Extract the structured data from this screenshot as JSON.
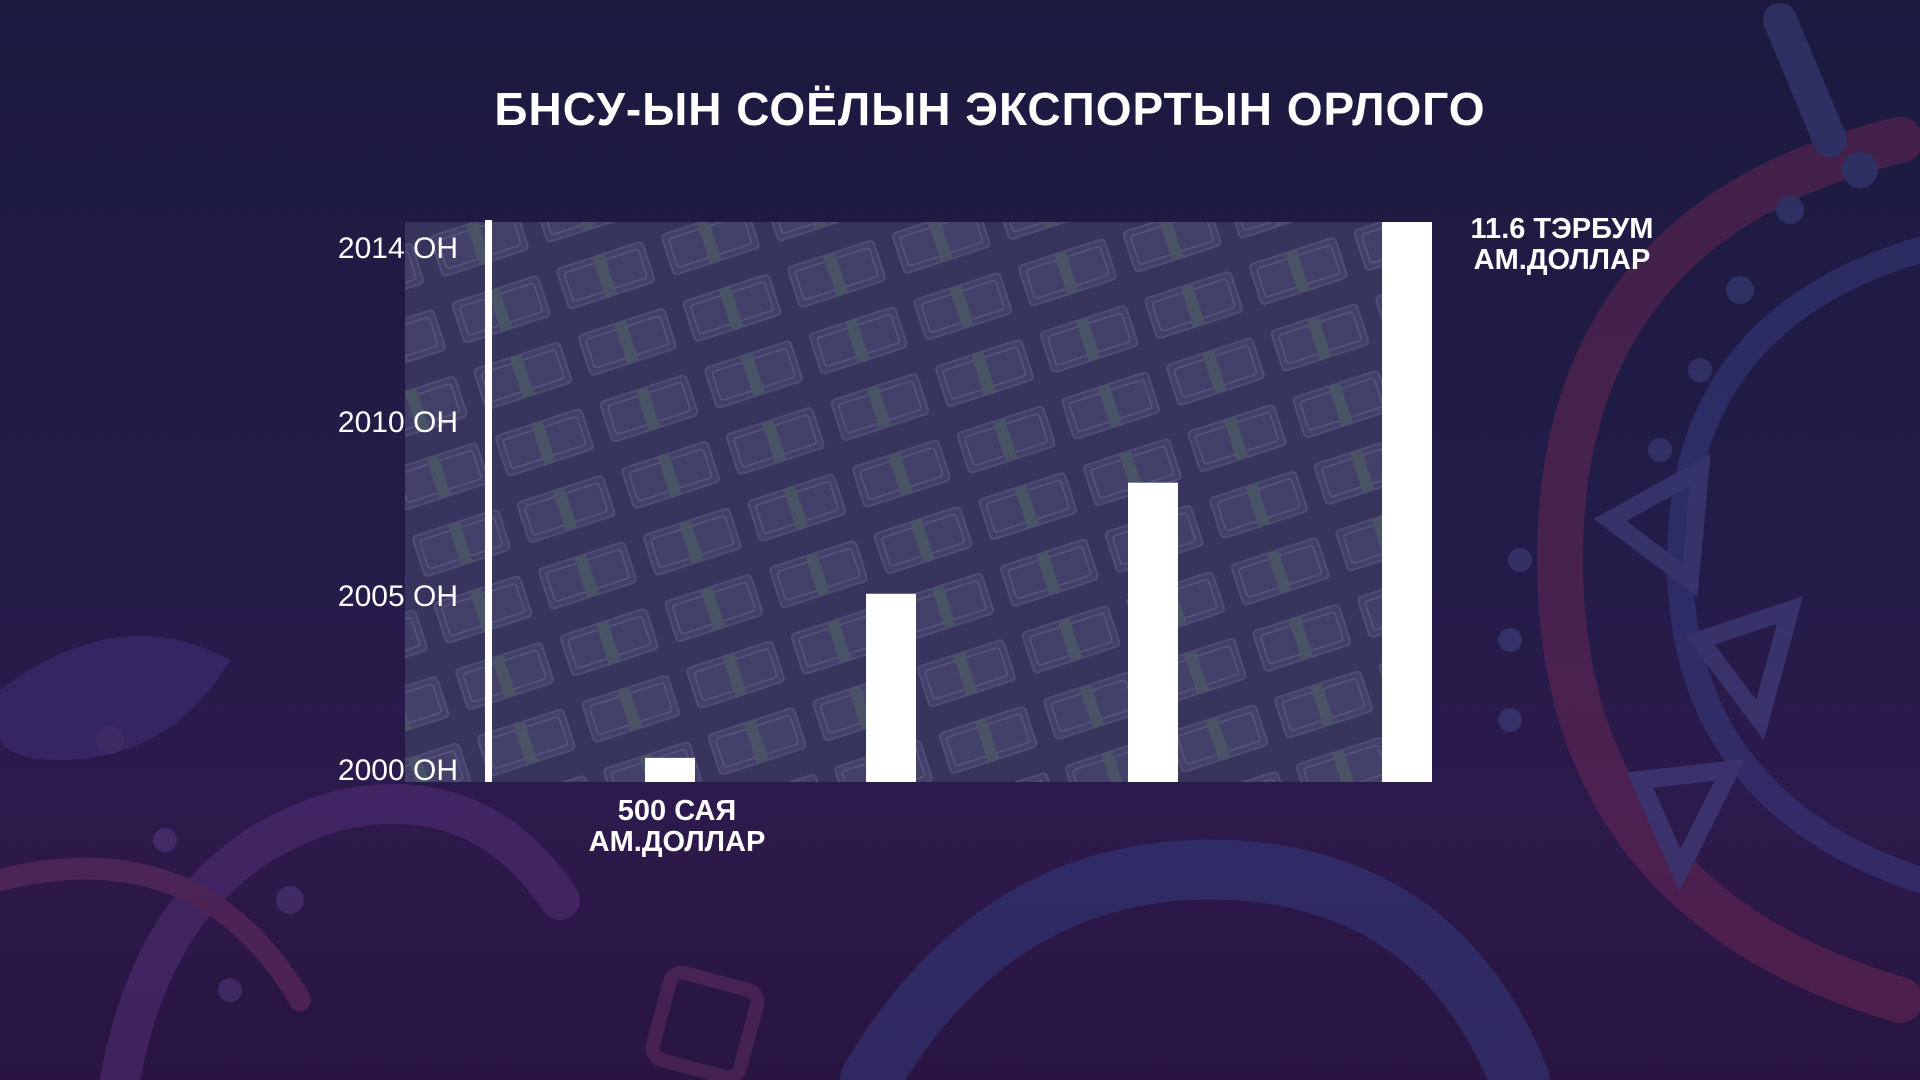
{
  "title": "БНСУ-ЫН СОЁЛЫН ЭКСПОРТЫН ОРЛОГО",
  "colors": {
    "background_top": "#1c1a3f",
    "background_bottom": "#2a1542",
    "bar": "#ffffff",
    "plot_panel": "#3b3a5c"
  },
  "chart_data": {
    "type": "bar",
    "title": "БНСУ-ЫН СОЁЛЫН ЭКСПОРТЫН ОРЛОГО",
    "xlabel": "",
    "ylabel": "",
    "y_tick_labels": [
      "2014 ОН",
      "2010 ОН",
      "2005 ОН",
      "2000 ОН"
    ],
    "values": [
      0.5,
      3.9,
      6.2,
      11.6
    ],
    "unit": "тэрбум ам.доллар",
    "ylim": [
      0,
      11.6
    ],
    "grid": false,
    "annotations": [
      {
        "bar_index": 0,
        "lines": [
          "500 САЯ",
          "АМ.ДОЛЛАР"
        ]
      },
      {
        "bar_index": 3,
        "lines": [
          "11.6 ТЭРБУМ",
          "АМ.ДОЛЛАР"
        ]
      }
    ]
  }
}
